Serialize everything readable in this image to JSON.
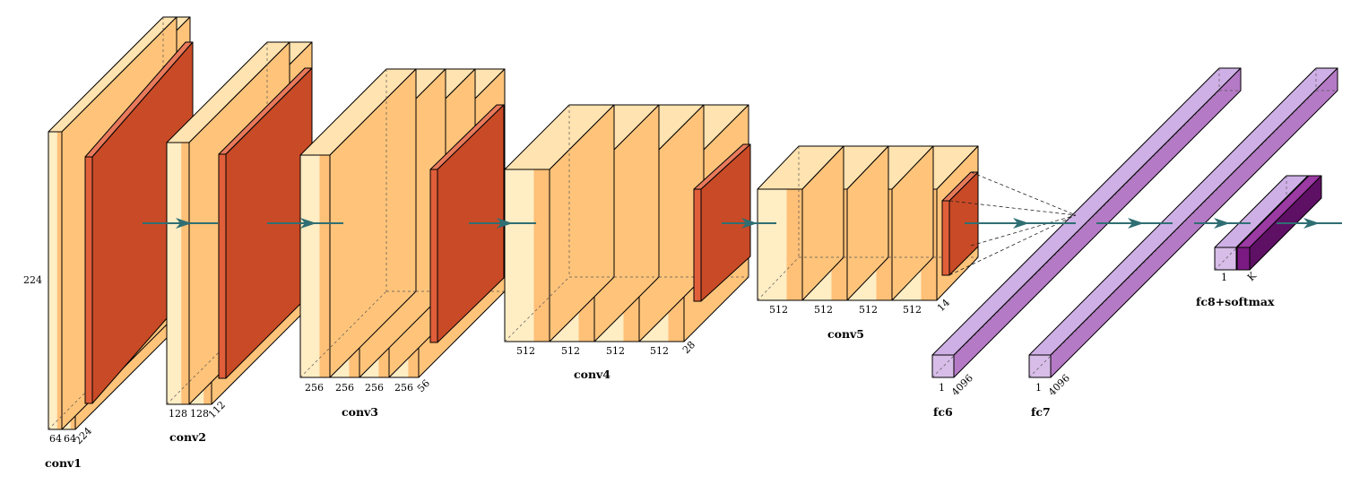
{
  "colors": {
    "conv_front": "#ffedc4",
    "conv_stripe": "#ffc078",
    "conv_top": "#ffe3b0",
    "conv_side": "#ffc47a",
    "pool_front": "#e05f3a",
    "pool_top": "#e8795a",
    "pool_side": "#c94a26",
    "fc_front": "#d7bde8",
    "fc_top": "#cfb0e6",
    "fc_side": "#b57ac6",
    "softmax_front": "#7b1a82",
    "softmax_top": "#9b3aa2",
    "softmax_side": "#5e1064",
    "arrow": "#2f6f73",
    "edge": "#000000"
  },
  "blocks": {
    "conv1": {
      "caption": "conv1",
      "channels": [
        "64",
        "64"
      ],
      "depth": "224",
      "height": "224"
    },
    "conv2": {
      "caption": "conv2",
      "channels": [
        "128",
        "128"
      ],
      "depth": "112"
    },
    "conv3": {
      "caption": "conv3",
      "channels": [
        "256",
        "256",
        "256",
        "256"
      ],
      "depth": "56"
    },
    "conv4": {
      "caption": "conv4",
      "channels": [
        "512",
        "512",
        "512",
        "512"
      ],
      "depth": "28"
    },
    "conv5": {
      "caption": "conv5",
      "channels": [
        "512",
        "512",
        "512",
        "512"
      ],
      "depth": "14"
    },
    "fc6": {
      "caption": "fc6",
      "width": "1",
      "depth": "4096"
    },
    "fc7": {
      "caption": "fc7",
      "width": "1",
      "depth": "4096"
    },
    "fc8": {
      "caption": "fc8+softmax",
      "width": "1",
      "depth": "K"
    }
  }
}
